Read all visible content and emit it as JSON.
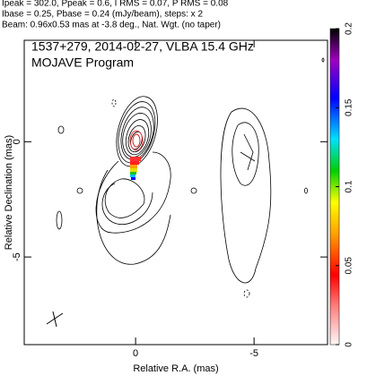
{
  "chart_data": {
    "type": "contour",
    "header": [
      "Ipeak = 302.0, Ppeak = 0.6, I RMS = 0.07, P RMS = 0.08",
      "Ibase = 0.25, Pbase = 0.24 (mJy/beam), steps: x 2",
      "Beam: 0.96x0.53 mas at -3.8 deg., Nat. Wgt. (no taper)"
    ],
    "title": "1537+279, 2014-02-27, VLBA 15.4 GHz",
    "subtitle": "MOJAVE Program",
    "x_label": "Relative R.A. (mas)",
    "y_label": "Relative Declination (mas)",
    "xlim": [
      4.7,
      -8.1
    ],
    "xticks": [
      0,
      -5
    ],
    "ylim": [
      4.4,
      -8.8
    ],
    "yticks": [
      0,
      -5
    ],
    "clim": [
      0,
      0.2
    ],
    "cticks": [
      0,
      0.05,
      0.1,
      0.15,
      0.2
    ]
  }
}
